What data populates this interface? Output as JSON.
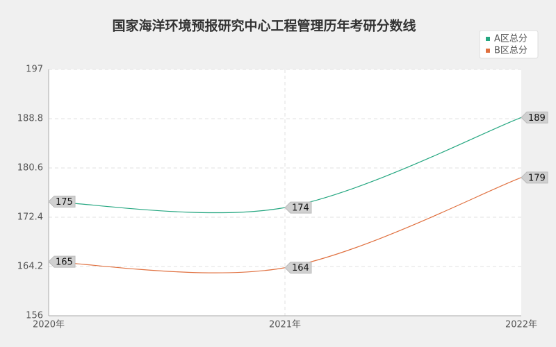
{
  "chart_data": {
    "type": "line",
    "title": "国家海洋环境预报研究中心工程管理历年考研分数线",
    "categories": [
      "2020年",
      "2021年",
      "2022年"
    ],
    "series": [
      {
        "name": "A区总分",
        "color": "#25a781",
        "values": [
          175,
          174,
          189
        ]
      },
      {
        "name": "B区总分",
        "color": "#e0703f",
        "values": [
          165,
          164,
          179
        ]
      }
    ],
    "ylim": [
      156,
      197
    ],
    "yticks": [
      156,
      164.2,
      172.4,
      180.6,
      188.8,
      197
    ],
    "grid": true,
    "legend": "top-right"
  }
}
